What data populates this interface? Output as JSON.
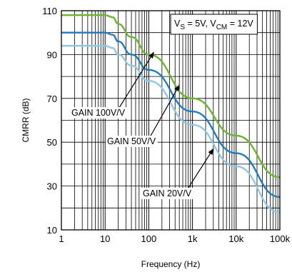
{
  "chart_data": {
    "type": "line",
    "xlabel": "Frequency (Hz)",
    "ylabel": "CMRR (dB)",
    "xscale": "log",
    "xlim": [
      1,
      100000
    ],
    "ylim": [
      10,
      110
    ],
    "grid": true,
    "x_ticks": [
      {
        "value": 1,
        "label": "1"
      },
      {
        "value": 10,
        "label": "10"
      },
      {
        "value": 100,
        "label": "100"
      },
      {
        "value": 1000,
        "label": "1k"
      },
      {
        "value": 10000,
        "label": "10k"
      },
      {
        "value": 100000,
        "label": "100k"
      }
    ],
    "y_ticks": [
      {
        "value": 10,
        "label": "10"
      },
      {
        "value": 30,
        "label": "30"
      },
      {
        "value": 50,
        "label": "50"
      },
      {
        "value": 70,
        "label": "70"
      },
      {
        "value": 90,
        "label": "90"
      },
      {
        "value": 110,
        "label": "110"
      }
    ],
    "condition_box": {
      "prefix": "V",
      "sub1": "S",
      "mid": " = 5V, V",
      "sub2": "CM",
      "suffix": " = 12V"
    },
    "series": [
      {
        "name": "GAIN 100V/V",
        "color": "#6ab52e",
        "x": [
          1,
          10,
          15,
          20,
          40,
          100,
          1000,
          10000,
          100000
        ],
        "y": [
          108,
          108,
          107,
          104,
          98,
          90,
          70,
          53,
          34
        ]
      },
      {
        "name": "GAIN 50V/V",
        "color": "#1e7bbf",
        "x": [
          1,
          10,
          15,
          20,
          40,
          100,
          1000,
          10000,
          100000
        ],
        "y": [
          100,
          100,
          99,
          96,
          90,
          83,
          64,
          45,
          25
        ]
      },
      {
        "name": "GAIN 20V/V",
        "color": "#8ec8e6",
        "x": [
          1,
          10,
          15,
          20,
          40,
          100,
          1000,
          10000,
          100000
        ],
        "y": [
          94,
          94,
          93,
          90,
          85,
          78,
          58,
          39,
          18
        ]
      }
    ],
    "annotations": [
      {
        "text": "GAIN 100V/V",
        "target_x": 130,
        "target_y": 91
      },
      {
        "text": "GAIN 50V/V",
        "target_x": 500,
        "target_y": 76
      },
      {
        "text": "GAIN 20V/V",
        "target_x": 3000,
        "target_y": 47
      }
    ]
  }
}
